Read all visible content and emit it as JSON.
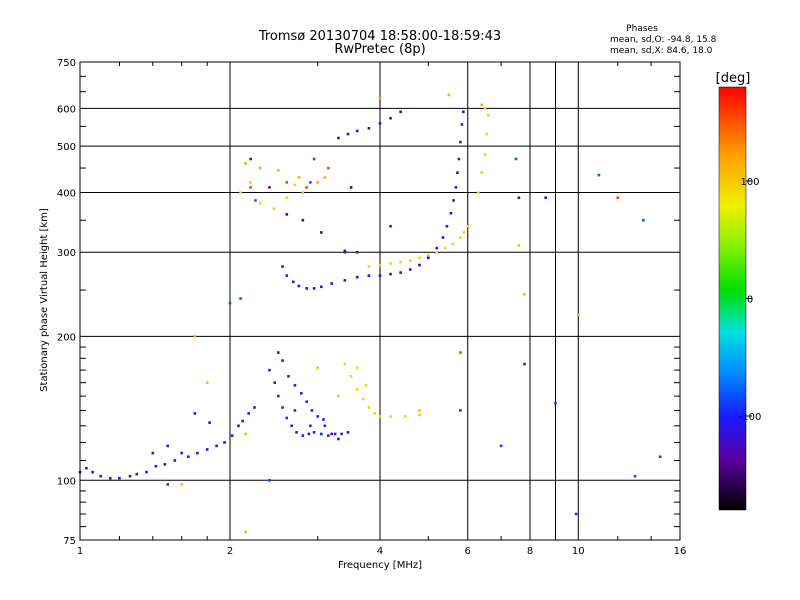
{
  "chart_data": {
    "type": "scatter",
    "title_line1": "Tromsø 20130704 18:58:00-18:59:43",
    "title_line2": "RwPretec (8p)",
    "xlabel": "Frequency [MHz]",
    "ylabel": "Stationary phase Virtual Height [km]",
    "x_scale": "log",
    "y_scale": "log",
    "xlim": [
      1,
      16
    ],
    "ylim": [
      75,
      750
    ],
    "x_ticks": [
      1,
      2,
      4,
      6,
      8,
      10,
      16
    ],
    "y_ticks": [
      75,
      100,
      200,
      300,
      400,
      500,
      600,
      750
    ],
    "grid": true,
    "phase_info": {
      "title": "Phases",
      "o_line": "mean, sd,O: -94.8, 15.8",
      "x_line": "mean, sd,X:  84.6, 18.0"
    },
    "colorbar": {
      "label": "[deg]",
      "range": [
        -180,
        180
      ],
      "ticks": [
        100,
        0,
        -100
      ]
    },
    "series": [
      {
        "phase": -112,
        "points": [
          [
            1.0,
            104
          ],
          [
            1.03,
            106
          ],
          [
            1.06,
            104
          ],
          [
            1.1,
            102
          ],
          [
            1.15,
            101
          ],
          [
            1.2,
            101
          ],
          [
            1.26,
            102
          ],
          [
            1.3,
            103
          ],
          [
            1.36,
            104
          ],
          [
            1.42,
            107
          ],
          [
            1.48,
            108
          ],
          [
            1.55,
            110
          ],
          [
            1.6,
            114
          ],
          [
            1.65,
            112
          ],
          [
            1.72,
            114
          ],
          [
            1.8,
            116
          ],
          [
            1.88,
            118
          ],
          [
            1.95,
            120
          ],
          [
            2.02,
            124
          ],
          [
            2.08,
            130
          ],
          [
            2.12,
            133
          ],
          [
            2.18,
            138
          ],
          [
            2.24,
            142
          ],
          [
            1.7,
            138
          ],
          [
            1.82,
            132
          ],
          [
            1.5,
            118
          ],
          [
            1.4,
            114
          ]
        ]
      },
      {
        "phase": -98,
        "points": [
          [
            2.4,
            170
          ],
          [
            2.46,
            160
          ],
          [
            2.5,
            150
          ],
          [
            2.55,
            142
          ],
          [
            2.6,
            135
          ],
          [
            2.66,
            130
          ],
          [
            2.72,
            126
          ],
          [
            2.8,
            124
          ],
          [
            2.88,
            125
          ],
          [
            2.95,
            126
          ],
          [
            3.05,
            125
          ],
          [
            3.15,
            124
          ],
          [
            3.25,
            125
          ],
          [
            3.35,
            125
          ],
          [
            3.45,
            126
          ],
          [
            2.62,
            165
          ],
          [
            2.7,
            158
          ],
          [
            2.78,
            152
          ],
          [
            2.85,
            146
          ],
          [
            2.92,
            140
          ],
          [
            3.0,
            136
          ],
          [
            3.08,
            134
          ],
          [
            2.55,
            178
          ],
          [
            2.5,
            185
          ],
          [
            2.7,
            140
          ],
          [
            2.9,
            130
          ],
          [
            3.1,
            130
          ]
        ]
      },
      {
        "phase": -118,
        "points": [
          [
            2.55,
            280
          ],
          [
            2.6,
            268
          ],
          [
            2.68,
            260
          ],
          [
            2.75,
            255
          ],
          [
            2.85,
            252
          ],
          [
            2.95,
            252
          ],
          [
            3.05,
            254
          ],
          [
            3.2,
            258
          ],
          [
            3.4,
            262
          ],
          [
            3.6,
            266
          ],
          [
            3.8,
            268
          ],
          [
            4.0,
            268
          ],
          [
            4.2,
            270
          ],
          [
            4.4,
            272
          ],
          [
            4.6,
            276
          ],
          [
            4.8,
            282
          ],
          [
            5.0,
            292
          ],
          [
            5.2,
            306
          ],
          [
            5.35,
            322
          ],
          [
            5.45,
            340
          ],
          [
            5.55,
            362
          ],
          [
            5.62,
            385
          ],
          [
            5.68,
            410
          ],
          [
            5.72,
            440
          ],
          [
            5.76,
            470
          ],
          [
            5.8,
            510
          ],
          [
            5.84,
            555
          ],
          [
            5.88,
            590
          ],
          [
            3.3,
            520
          ],
          [
            3.45,
            530
          ],
          [
            3.6,
            538
          ],
          [
            3.8,
            545
          ],
          [
            4.0,
            558
          ],
          [
            4.2,
            572
          ],
          [
            4.4,
            590
          ],
          [
            3.6,
            300
          ],
          [
            3.4,
            302
          ],
          [
            4.2,
            340
          ]
        ]
      },
      {
        "phase": 95,
        "points": [
          [
            3.8,
            280
          ],
          [
            4.0,
            282
          ],
          [
            4.2,
            284
          ],
          [
            4.4,
            286
          ],
          [
            4.6,
            288
          ],
          [
            4.8,
            292
          ],
          [
            5.0,
            296
          ],
          [
            5.2,
            300
          ],
          [
            5.4,
            306
          ],
          [
            5.6,
            312
          ],
          [
            5.8,
            322
          ],
          [
            5.9,
            330
          ],
          [
            6.0,
            340
          ],
          [
            6.3,
            400
          ],
          [
            6.4,
            440
          ],
          [
            6.5,
            480
          ],
          [
            6.55,
            530
          ],
          [
            6.6,
            580
          ],
          [
            6.5,
            600
          ],
          [
            3.4,
            175
          ],
          [
            3.5,
            165
          ],
          [
            3.6,
            155
          ],
          [
            3.7,
            148
          ],
          [
            3.8,
            142
          ],
          [
            3.9,
            138
          ],
          [
            4.0,
            136
          ],
          [
            4.2,
            136
          ],
          [
            4.5,
            136
          ],
          [
            4.8,
            137
          ],
          [
            3.6,
            172
          ],
          [
            3.75,
            158
          ],
          [
            2.1,
            400
          ],
          [
            2.2,
            420
          ],
          [
            2.3,
            380
          ],
          [
            2.45,
            370
          ],
          [
            2.6,
            390
          ],
          [
            2.7,
            415
          ],
          [
            2.8,
            400
          ]
        ]
      },
      {
        "phase": 122,
        "points": [
          [
            2.15,
            460
          ],
          [
            2.3,
            450
          ],
          [
            2.5,
            445
          ],
          [
            2.75,
            430
          ],
          [
            3.0,
            420
          ],
          [
            3.1,
            430
          ],
          [
            5.5,
            640
          ],
          [
            6.4,
            610
          ],
          [
            4.0,
            630
          ]
        ]
      },
      {
        "phase": -140,
        "points": [
          [
            2.2,
            470
          ],
          [
            2.4,
            410
          ],
          [
            2.6,
            360
          ],
          [
            2.8,
            350
          ],
          [
            3.05,
            330
          ],
          [
            3.4,
            300
          ],
          [
            3.5,
            410
          ],
          [
            7.6,
            390
          ],
          [
            8.6,
            390
          ],
          [
            3.2,
            125
          ],
          [
            3.3,
            122
          ]
        ]
      },
      {
        "phase": -80,
        "points": [
          [
            2.1,
            240
          ],
          [
            2.0,
            235
          ],
          [
            2.25,
            385
          ],
          [
            2.9,
            420
          ],
          [
            7.5,
            470
          ],
          [
            13.5,
            350
          ],
          [
            11.0,
            435
          ],
          [
            2.95,
            470
          ]
        ]
      },
      {
        "phase": 55,
        "points": [
          [
            7.6,
            310
          ],
          [
            3.3,
            150
          ],
          [
            3.0,
            172
          ]
        ]
      },
      {
        "phase": 158,
        "points": [
          [
            2.2,
            410
          ],
          [
            2.6,
            420
          ],
          [
            2.85,
            410
          ],
          [
            5.8,
            185
          ],
          [
            12.0,
            390
          ],
          [
            3.15,
            450
          ]
        ]
      },
      {
        "phase": -90,
        "points": [
          [
            9.0,
            145
          ],
          [
            7.8,
            175
          ],
          [
            9.9,
            85
          ],
          [
            13.0,
            102
          ],
          [
            14.6,
            112
          ],
          [
            7.0,
            118
          ],
          [
            5.8,
            140
          ],
          [
            1.5,
            98
          ],
          [
            2.4,
            100
          ]
        ]
      },
      {
        "phase": 110,
        "points": [
          [
            1.7,
            200
          ],
          [
            1.8,
            160
          ],
          [
            1.6,
            98
          ],
          [
            2.15,
            78
          ],
          [
            2.15,
            125
          ],
          [
            10.0,
            222
          ],
          [
            7.8,
            245
          ],
          [
            4.8,
            140
          ]
        ]
      }
    ]
  }
}
